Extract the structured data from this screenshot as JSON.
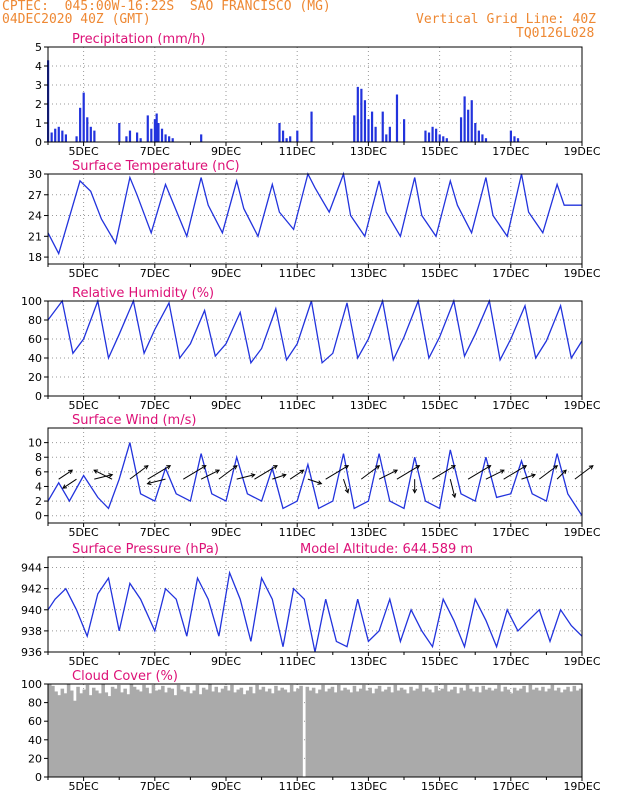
{
  "header": {
    "line1": "CPTEC:  045:00W-16:22S  SAO FRANCISCO (MG)",
    "line2": "04DEC2020 40Z (GMT)",
    "right1": "Vertical Grid Line: 40Z",
    "right2": "TQ0126L028"
  },
  "colors": {
    "header": "#ee8833",
    "title": "#dd1177",
    "line": "#2233dd",
    "bar": "#2233dd",
    "cloud": "#aaaaaa",
    "grid": "#999999"
  },
  "x_axis": {
    "start_day": 4,
    "end_day": 19,
    "tick_labels": [
      "5DEC",
      "7DEC",
      "9DEC",
      "11DEC",
      "13DEC",
      "15DEC",
      "17DEC",
      "19DEC"
    ],
    "tick_days": [
      5,
      7,
      9,
      11,
      13,
      15,
      17,
      19
    ]
  },
  "chart_data": [
    {
      "id": "precipitation",
      "type": "bar",
      "title": "Precipitation (mm/h)",
      "ylim": [
        0,
        5
      ],
      "yticks": [
        0,
        1,
        2,
        3,
        4,
        5
      ],
      "x": [
        4.0,
        4.1,
        4.2,
        4.3,
        4.4,
        4.5,
        4.8,
        4.9,
        5.0,
        5.1,
        5.2,
        5.3,
        6.0,
        6.2,
        6.3,
        6.5,
        6.6,
        6.8,
        6.9,
        7.0,
        7.05,
        7.1,
        7.2,
        7.3,
        7.4,
        7.5,
        8.3,
        10.5,
        10.6,
        10.7,
        10.8,
        11.0,
        11.4,
        12.6,
        12.7,
        12.8,
        12.9,
        13.0,
        13.1,
        13.2,
        13.4,
        13.5,
        13.6,
        13.8,
        14.0,
        14.6,
        14.7,
        14.8,
        14.9,
        15.0,
        15.1,
        15.2,
        15.6,
        15.7,
        15.8,
        15.9,
        16.0,
        16.1,
        16.2,
        16.3,
        17.0,
        17.1,
        17.2
      ],
      "values": [
        4.3,
        0.5,
        0.7,
        0.8,
        0.6,
        0.4,
        0.3,
        1.8,
        2.6,
        1.3,
        0.8,
        0.6,
        1.0,
        0.3,
        0.6,
        0.5,
        0.2,
        1.4,
        0.7,
        1.2,
        1.5,
        1.0,
        0.7,
        0.4,
        0.3,
        0.2,
        0.4,
        1.0,
        0.6,
        0.2,
        0.3,
        0.6,
        1.6,
        1.4,
        2.9,
        2.8,
        2.2,
        1.2,
        1.6,
        0.8,
        1.6,
        0.4,
        0.8,
        2.5,
        1.2,
        0.6,
        0.5,
        0.8,
        0.7,
        0.4,
        0.3,
        0.2,
        1.3,
        2.4,
        1.7,
        2.2,
        1.0,
        0.6,
        0.4,
        0.2,
        0.6,
        0.3,
        0.2
      ]
    },
    {
      "id": "temperature",
      "type": "line",
      "title": "Surface Temperature (nC)",
      "ylim": [
        17,
        30
      ],
      "yticks": [
        18,
        21,
        24,
        27,
        30
      ],
      "x": [
        4.0,
        4.3,
        4.5,
        4.9,
        5.2,
        5.5,
        5.9,
        6.3,
        6.5,
        6.9,
        7.3,
        7.5,
        7.9,
        8.3,
        8.5,
        8.9,
        9.3,
        9.5,
        9.9,
        10.3,
        10.5,
        10.9,
        11.3,
        11.5,
        11.9,
        12.3,
        12.5,
        12.9,
        13.3,
        13.5,
        13.9,
        14.3,
        14.5,
        14.9,
        15.3,
        15.5,
        15.9,
        16.3,
        16.5,
        16.9,
        17.3,
        17.5,
        17.9,
        18.3,
        18.5,
        19.0
      ],
      "values": [
        21.5,
        18.5,
        22.0,
        29.0,
        27.5,
        23.5,
        20.0,
        29.5,
        27.0,
        21.5,
        28.5,
        26.0,
        21.0,
        29.5,
        25.5,
        21.5,
        29.0,
        25.0,
        21.0,
        28.5,
        24.5,
        22.0,
        30.0,
        28.0,
        24.5,
        30.0,
        24.0,
        21.0,
        29.0,
        24.5,
        21.0,
        29.5,
        24.0,
        21.0,
        29.0,
        25.5,
        21.5,
        29.5,
        24.0,
        21.0,
        30.0,
        24.5,
        21.5,
        28.5,
        25.5,
        25.5
      ]
    },
    {
      "id": "humidity",
      "type": "line",
      "title": "Relative Humidity (%)",
      "ylim": [
        0,
        100
      ],
      "yticks": [
        0,
        20,
        40,
        60,
        80,
        100
      ],
      "x": [
        4.0,
        4.4,
        4.7,
        5.0,
        5.4,
        5.7,
        6.0,
        6.4,
        6.7,
        7.0,
        7.4,
        7.7,
        8.0,
        8.4,
        8.7,
        9.0,
        9.4,
        9.7,
        10.0,
        10.4,
        10.7,
        11.0,
        11.4,
        11.7,
        12.0,
        12.4,
        12.7,
        13.0,
        13.4,
        13.7,
        14.0,
        14.4,
        14.7,
        15.0,
        15.4,
        15.7,
        16.0,
        16.4,
        16.7,
        17.0,
        17.4,
        17.7,
        18.0,
        18.4,
        18.7,
        19.0
      ],
      "values": [
        80,
        100,
        45,
        60,
        100,
        40,
        65,
        100,
        45,
        70,
        98,
        40,
        55,
        90,
        42,
        55,
        88,
        35,
        50,
        92,
        38,
        55,
        100,
        35,
        45,
        98,
        40,
        60,
        100,
        38,
        62,
        100,
        40,
        62,
        100,
        42,
        65,
        100,
        38,
        60,
        95,
        40,
        58,
        95,
        40,
        58
      ]
    },
    {
      "id": "wind",
      "type": "line",
      "title": "Surface Wind (m/s)",
      "ylim": [
        -1,
        12
      ],
      "yticks": [
        0,
        2,
        4,
        6,
        8,
        10
      ],
      "x": [
        4.0,
        4.3,
        4.6,
        5.0,
        5.4,
        5.7,
        6.0,
        6.3,
        6.6,
        7.0,
        7.3,
        7.6,
        8.0,
        8.3,
        8.6,
        9.0,
        9.3,
        9.6,
        10.0,
        10.3,
        10.6,
        11.0,
        11.3,
        11.6,
        12.0,
        12.3,
        12.6,
        13.0,
        13.3,
        13.6,
        14.0,
        14.3,
        14.6,
        15.0,
        15.3,
        15.6,
        16.0,
        16.3,
        16.6,
        17.0,
        17.3,
        17.6,
        18.0,
        18.3,
        18.6,
        19.0
      ],
      "values": [
        2,
        4.5,
        2,
        5.5,
        2.5,
        1,
        5,
        10,
        3,
        2,
        6.5,
        3,
        2,
        8.5,
        3,
        2,
        8,
        3,
        2,
        6.5,
        1,
        2,
        7,
        1,
        2,
        8.5,
        1,
        2,
        8.5,
        2,
        1,
        8,
        2,
        1,
        9,
        3,
        2,
        8,
        2.5,
        3,
        7.5,
        3,
        2,
        8.5,
        3,
        0
      ],
      "arrows_x": [
        4.3,
        4.8,
        5.3,
        5.8,
        6.3,
        6.8,
        7.3,
        7.8,
        8.3,
        8.8,
        9.3,
        9.8,
        10.3,
        10.8,
        11.3,
        11.8,
        12.3,
        12.8,
        13.3,
        13.8,
        14.3,
        14.8,
        15.3,
        15.8,
        16.3,
        16.8,
        17.3,
        17.8,
        18.3,
        18.8
      ],
      "arrows_u": [
        3,
        -3,
        4,
        -4,
        4,
        5,
        -4,
        5,
        4,
        4,
        4,
        5,
        3,
        3,
        3,
        5,
        1,
        4,
        4,
        5,
        0,
        5,
        1,
        5,
        4,
        5,
        3,
        4,
        2,
        4
      ],
      "arrows_v": [
        -2,
        2,
        -1,
        -2,
        -3,
        -3,
        1,
        -3,
        -2,
        -3,
        -1,
        -3,
        -1,
        -2,
        1,
        -3,
        3,
        -3,
        -2,
        -3,
        3,
        -3,
        4,
        -3,
        -2,
        -3,
        -1,
        -3,
        -2,
        -3
      ]
    },
    {
      "id": "pressure",
      "type": "line",
      "title": "Surface Pressure (hPa)",
      "annotation": "Model Altitude: 644.589  m",
      "ylim": [
        936,
        945
      ],
      "yticks": [
        936,
        938,
        940,
        942,
        944
      ],
      "x": [
        4.0,
        4.2,
        4.5,
        4.8,
        5.1,
        5.4,
        5.7,
        6.0,
        6.3,
        6.6,
        7.0,
        7.3,
        7.6,
        7.9,
        8.2,
        8.5,
        8.8,
        9.1,
        9.4,
        9.7,
        10.0,
        10.3,
        10.6,
        10.9,
        11.2,
        11.5,
        11.8,
        12.1,
        12.4,
        12.7,
        13.0,
        13.3,
        13.6,
        13.9,
        14.2,
        14.5,
        14.8,
        15.1,
        15.4,
        15.7,
        16.0,
        16.3,
        16.6,
        16.9,
        17.2,
        17.5,
        17.8,
        18.1,
        18.4,
        18.7,
        19.0
      ],
      "values": [
        940,
        941,
        942,
        940,
        937.5,
        941.5,
        943,
        938,
        942.5,
        941,
        938,
        942,
        941,
        937.5,
        943,
        941,
        937.5,
        943.5,
        941,
        937,
        943,
        941,
        936.5,
        942,
        941,
        936,
        941,
        937,
        936.5,
        941,
        937,
        938,
        941,
        937,
        940,
        938,
        936.5,
        941,
        939,
        936.5,
        941,
        939,
        936.5,
        940,
        938,
        939,
        940,
        937,
        940,
        938.5,
        937.5
      ]
    },
    {
      "id": "cloud",
      "type": "bar",
      "title": "Cloud Cover (%)",
      "ylim": [
        0,
        100
      ],
      "yticks": [
        0,
        20,
        40,
        60,
        80,
        100
      ],
      "values": [
        100,
        98,
        92,
        88,
        95,
        90,
        100,
        93,
        82,
        97,
        90,
        94,
        99,
        88,
        96,
        93,
        90,
        100,
        91,
        87,
        97,
        95,
        99,
        91,
        95,
        89,
        100,
        97,
        94,
        92,
        99,
        96,
        90,
        99,
        93,
        94,
        98,
        91,
        96,
        95,
        88,
        99,
        94,
        92,
        97,
        90,
        93,
        99,
        89,
        96,
        94,
        100,
        92,
        97,
        91,
        95,
        98,
        93,
        99,
        91,
        94,
        96,
        89,
        93,
        97,
        90,
        99,
        94,
        97,
        92,
        95,
        90,
        98,
        93,
        96,
        94,
        91,
        99,
        92,
        95,
        98,
        0,
        97,
        93,
        96,
        90,
        94,
        99,
        92,
        95,
        97,
        91,
        99,
        93,
        96,
        94,
        91,
        98,
        92,
        95,
        99,
        93,
        96,
        90,
        95,
        98,
        92,
        94,
        97,
        91,
        99,
        93,
        96,
        94,
        90,
        97,
        93,
        95,
        99,
        92,
        96,
        94,
        91,
        98,
        93,
        95,
        99,
        92,
        94,
        97,
        90,
        96,
        93,
        99,
        95,
        92,
        97,
        91,
        98,
        94,
        96,
        93,
        95,
        99,
        92,
        97,
        94,
        90,
        96,
        93,
        95,
        98,
        91,
        99,
        94,
        96,
        93,
        97,
        92,
        95,
        99,
        93,
        96,
        91,
        94,
        97,
        92,
        98,
        93,
        95
      ]
    }
  ]
}
